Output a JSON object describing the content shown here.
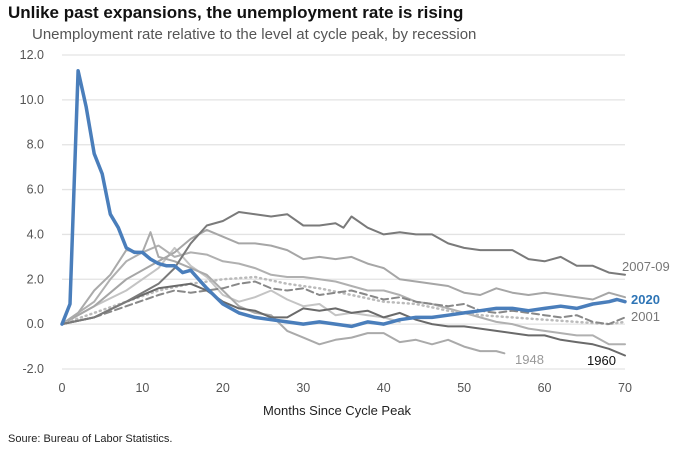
{
  "chart_data": {
    "type": "line",
    "title": "Unlike past expansions, the unemployment rate is rising",
    "subtitle": "Unemployment rate relative to the level at cycle peak, by recession",
    "xlabel": "Months Since Cycle Peak",
    "ylabel": "",
    "source": "Soure: Bureau of Labor Statistics.",
    "xlim": [
      0,
      70
    ],
    "ylim": [
      -2,
      12
    ],
    "xticks": [
      "0",
      "10",
      "20",
      "30",
      "40",
      "50",
      "60",
      "70"
    ],
    "yticks": [
      "12.0",
      "10.0",
      "8.0",
      "6.0",
      "4.0",
      "2.0",
      "0.0",
      "-2.0"
    ],
    "grid": "horizontal",
    "series": [
      {
        "style": "solid",
        "color": "#c4c4c4",
        "width": 2,
        "points": [
          [
            0,
            0
          ],
          [
            4,
            0.8
          ],
          [
            8,
            1.5
          ],
          [
            12,
            2.5
          ],
          [
            14,
            3.4
          ],
          [
            16,
            2.6
          ],
          [
            18,
            2.1
          ],
          [
            20,
            1.3
          ],
          [
            22,
            1.0
          ],
          [
            24,
            1.2
          ],
          [
            26,
            1.5
          ],
          [
            28,
            1.1
          ],
          [
            30,
            0.8
          ],
          [
            32,
            0.9
          ],
          [
            34,
            0.4
          ],
          [
            36,
            0.5
          ],
          [
            38,
            0.4
          ],
          [
            40,
            0.3
          ],
          [
            42,
            0.1
          ]
        ]
      },
      {
        "style": "solid",
        "color": "#a6a6a6",
        "width": 2,
        "points": [
          [
            0,
            0
          ],
          [
            4,
            0.8
          ],
          [
            8,
            2.0
          ],
          [
            12,
            2.8
          ],
          [
            14,
            3.2
          ],
          [
            16,
            3.8
          ],
          [
            18,
            4.2
          ],
          [
            20,
            3.9
          ],
          [
            22,
            3.6
          ],
          [
            24,
            3.6
          ],
          [
            26,
            3.5
          ],
          [
            28,
            3.3
          ],
          [
            30,
            2.9
          ],
          [
            32,
            3.0
          ],
          [
            34,
            2.9
          ],
          [
            36,
            3.0
          ],
          [
            38,
            2.7
          ],
          [
            40,
            2.5
          ],
          [
            42,
            2.0
          ],
          [
            44,
            1.9
          ],
          [
            46,
            1.8
          ],
          [
            48,
            1.7
          ],
          [
            50,
            1.4
          ],
          [
            52,
            1.3
          ],
          [
            54,
            1.6
          ],
          [
            56,
            1.4
          ],
          [
            58,
            1.3
          ],
          [
            60,
            1.4
          ],
          [
            62,
            1.3
          ],
          [
            64,
            1.2
          ],
          [
            66,
            1.1
          ],
          [
            68,
            1.4
          ],
          [
            70,
            1.2
          ]
        ]
      },
      {
        "style": "solid",
        "color": "#b0b0b0",
        "width": 2,
        "points": [
          [
            0,
            0
          ],
          [
            4,
            1.0
          ],
          [
            6,
            2.0
          ],
          [
            8,
            2.8
          ],
          [
            10,
            3.2
          ],
          [
            12,
            3.5
          ],
          [
            14,
            3.0
          ],
          [
            16,
            3.2
          ],
          [
            18,
            3.1
          ],
          [
            20,
            2.8
          ],
          [
            22,
            2.7
          ],
          [
            24,
            2.5
          ],
          [
            26,
            2.2
          ],
          [
            28,
            2.1
          ],
          [
            30,
            2.1
          ],
          [
            32,
            2.0
          ],
          [
            34,
            1.9
          ],
          [
            36,
            1.7
          ],
          [
            38,
            1.5
          ],
          [
            40,
            1.5
          ],
          [
            42,
            1.3
          ],
          [
            44,
            1.0
          ],
          [
            46,
            0.9
          ],
          [
            48,
            0.7
          ],
          [
            50,
            0.5
          ],
          [
            52,
            0.3
          ],
          [
            54,
            0.1
          ],
          [
            56,
            0.0
          ],
          [
            58,
            -0.2
          ],
          [
            60,
            -0.3
          ],
          [
            62,
            -0.4
          ],
          [
            64,
            -0.5
          ],
          [
            66,
            -0.5
          ],
          [
            68,
            -0.9
          ],
          [
            70,
            -0.9
          ]
        ]
      },
      {
        "name": "1948",
        "label_color": "#999999",
        "style": "solid",
        "color": "#aaaaaa",
        "width": 2,
        "points": [
          [
            0,
            0
          ],
          [
            2,
            0.5
          ],
          [
            4,
            1.5
          ],
          [
            6,
            2.2
          ],
          [
            8,
            3.3
          ],
          [
            10,
            3.2
          ],
          [
            11,
            4.1
          ],
          [
            12,
            3.0
          ],
          [
            14,
            2.8
          ],
          [
            16,
            2.5
          ],
          [
            18,
            2.2
          ],
          [
            20,
            1.5
          ],
          [
            22,
            0.8
          ],
          [
            24,
            0.5
          ],
          [
            26,
            0.4
          ],
          [
            28,
            -0.3
          ],
          [
            30,
            -0.6
          ],
          [
            32,
            -0.9
          ],
          [
            34,
            -0.7
          ],
          [
            36,
            -0.6
          ],
          [
            38,
            -0.4
          ],
          [
            40,
            -0.4
          ],
          [
            42,
            -0.8
          ],
          [
            44,
            -0.7
          ],
          [
            46,
            -0.9
          ],
          [
            48,
            -0.7
          ],
          [
            50,
            -1.0
          ],
          [
            52,
            -1.2
          ],
          [
            54,
            -1.2
          ],
          [
            55,
            -1.3
          ]
        ]
      },
      {
        "style": "dotted",
        "color": "#bbbbbb",
        "width": 2,
        "points": [
          [
            0,
            0
          ],
          [
            4,
            0.5
          ],
          [
            8,
            1.0
          ],
          [
            12,
            1.5
          ],
          [
            16,
            1.8
          ],
          [
            20,
            2.0
          ],
          [
            24,
            2.1
          ],
          [
            28,
            1.8
          ],
          [
            32,
            1.6
          ],
          [
            36,
            1.3
          ],
          [
            40,
            1.0
          ],
          [
            44,
            0.9
          ],
          [
            48,
            0.6
          ],
          [
            52,
            0.4
          ],
          [
            56,
            0.3
          ],
          [
            60,
            0.2
          ],
          [
            64,
            0.1
          ],
          [
            68,
            0.0
          ],
          [
            70,
            0.1
          ]
        ]
      },
      {
        "name": "2001",
        "label_color": "#777777",
        "style": "dashed",
        "color": "#888888",
        "width": 2,
        "points": [
          [
            0,
            0
          ],
          [
            4,
            0.3
          ],
          [
            8,
            0.8
          ],
          [
            12,
            1.3
          ],
          [
            14,
            1.5
          ],
          [
            16,
            1.4
          ],
          [
            18,
            1.5
          ],
          [
            20,
            1.6
          ],
          [
            22,
            1.8
          ],
          [
            24,
            1.9
          ],
          [
            26,
            1.6
          ],
          [
            28,
            1.5
          ],
          [
            30,
            1.6
          ],
          [
            32,
            1.3
          ],
          [
            34,
            1.4
          ],
          [
            36,
            1.5
          ],
          [
            38,
            1.3
          ],
          [
            40,
            1.1
          ],
          [
            42,
            1.2
          ],
          [
            44,
            1.0
          ],
          [
            46,
            0.9
          ],
          [
            48,
            0.8
          ],
          [
            50,
            0.9
          ],
          [
            52,
            0.6
          ],
          [
            54,
            0.5
          ],
          [
            56,
            0.6
          ],
          [
            58,
            0.5
          ],
          [
            60,
            0.4
          ],
          [
            62,
            0.3
          ],
          [
            64,
            0.4
          ],
          [
            66,
            0.1
          ],
          [
            68,
            0.0
          ],
          [
            70,
            0.3
          ]
        ]
      },
      {
        "name": "1960",
        "label_color": "#111111",
        "style": "solid",
        "color": "#6a6a6a",
        "width": 2,
        "points": [
          [
            0,
            0
          ],
          [
            4,
            0.3
          ],
          [
            8,
            1.0
          ],
          [
            12,
            1.6
          ],
          [
            14,
            1.7
          ],
          [
            16,
            1.8
          ],
          [
            18,
            1.5
          ],
          [
            20,
            1.0
          ],
          [
            22,
            0.7
          ],
          [
            24,
            0.6
          ],
          [
            26,
            0.3
          ],
          [
            28,
            0.3
          ],
          [
            30,
            0.7
          ],
          [
            32,
            0.6
          ],
          [
            34,
            0.7
          ],
          [
            36,
            0.5
          ],
          [
            38,
            0.6
          ],
          [
            40,
            0.3
          ],
          [
            42,
            0.5
          ],
          [
            44,
            0.2
          ],
          [
            46,
            0.0
          ],
          [
            48,
            -0.1
          ],
          [
            50,
            -0.1
          ],
          [
            52,
            -0.2
          ],
          [
            54,
            -0.3
          ],
          [
            56,
            -0.4
          ],
          [
            58,
            -0.5
          ],
          [
            60,
            -0.5
          ],
          [
            62,
            -0.7
          ],
          [
            64,
            -0.8
          ],
          [
            66,
            -0.9
          ],
          [
            68,
            -1.1
          ],
          [
            70,
            -1.4
          ]
        ]
      },
      {
        "name": "2007-09",
        "label_color": "#777777",
        "style": "solid",
        "color": "#7a7a7a",
        "width": 2,
        "points": [
          [
            0,
            0
          ],
          [
            4,
            0.3
          ],
          [
            8,
            1.0
          ],
          [
            12,
            1.8
          ],
          [
            14,
            2.5
          ],
          [
            16,
            3.6
          ],
          [
            18,
            4.4
          ],
          [
            20,
            4.6
          ],
          [
            22,
            5.0
          ],
          [
            24,
            4.9
          ],
          [
            26,
            4.8
          ],
          [
            28,
            4.9
          ],
          [
            30,
            4.4
          ],
          [
            32,
            4.4
          ],
          [
            34,
            4.5
          ],
          [
            35,
            4.3
          ],
          [
            36,
            4.8
          ],
          [
            38,
            4.3
          ],
          [
            40,
            4.0
          ],
          [
            42,
            4.1
          ],
          [
            44,
            4.0
          ],
          [
            46,
            4.0
          ],
          [
            48,
            3.6
          ],
          [
            50,
            3.4
          ],
          [
            52,
            3.3
          ],
          [
            54,
            3.3
          ],
          [
            56,
            3.3
          ],
          [
            58,
            2.9
          ],
          [
            60,
            2.8
          ],
          [
            62,
            3.0
          ],
          [
            64,
            2.6
          ],
          [
            66,
            2.6
          ],
          [
            68,
            2.3
          ],
          [
            70,
            2.2
          ]
        ]
      },
      {
        "name": "2020",
        "label_color": "#2e75b6",
        "style": "solid",
        "color": "#4a7ebb",
        "width": 3.5,
        "points": [
          [
            0,
            0
          ],
          [
            1,
            0.9
          ],
          [
            2,
            11.3
          ],
          [
            3,
            9.7
          ],
          [
            4,
            7.6
          ],
          [
            5,
            6.7
          ],
          [
            6,
            4.9
          ],
          [
            7,
            4.3
          ],
          [
            8,
            3.4
          ],
          [
            9,
            3.2
          ],
          [
            10,
            3.2
          ],
          [
            11,
            2.9
          ],
          [
            12,
            2.7
          ],
          [
            13,
            2.6
          ],
          [
            14,
            2.6
          ],
          [
            15,
            2.3
          ],
          [
            16,
            2.4
          ],
          [
            17,
            2.0
          ],
          [
            18,
            1.6
          ],
          [
            20,
            0.9
          ],
          [
            22,
            0.5
          ],
          [
            24,
            0.3
          ],
          [
            26,
            0.2
          ],
          [
            28,
            0.1
          ],
          [
            30,
            0.0
          ],
          [
            32,
            0.1
          ],
          [
            34,
            0.0
          ],
          [
            36,
            -0.1
          ],
          [
            38,
            0.1
          ],
          [
            40,
            0.0
          ],
          [
            42,
            0.2
          ],
          [
            44,
            0.3
          ],
          [
            46,
            0.3
          ],
          [
            48,
            0.4
          ],
          [
            50,
            0.5
          ],
          [
            52,
            0.6
          ],
          [
            54,
            0.7
          ],
          [
            56,
            0.7
          ],
          [
            58,
            0.6
          ],
          [
            60,
            0.7
          ],
          [
            62,
            0.8
          ],
          [
            64,
            0.7
          ],
          [
            66,
            0.9
          ],
          [
            68,
            1.0
          ],
          [
            69,
            1.1
          ],
          [
            70,
            1.0
          ]
        ]
      }
    ]
  }
}
